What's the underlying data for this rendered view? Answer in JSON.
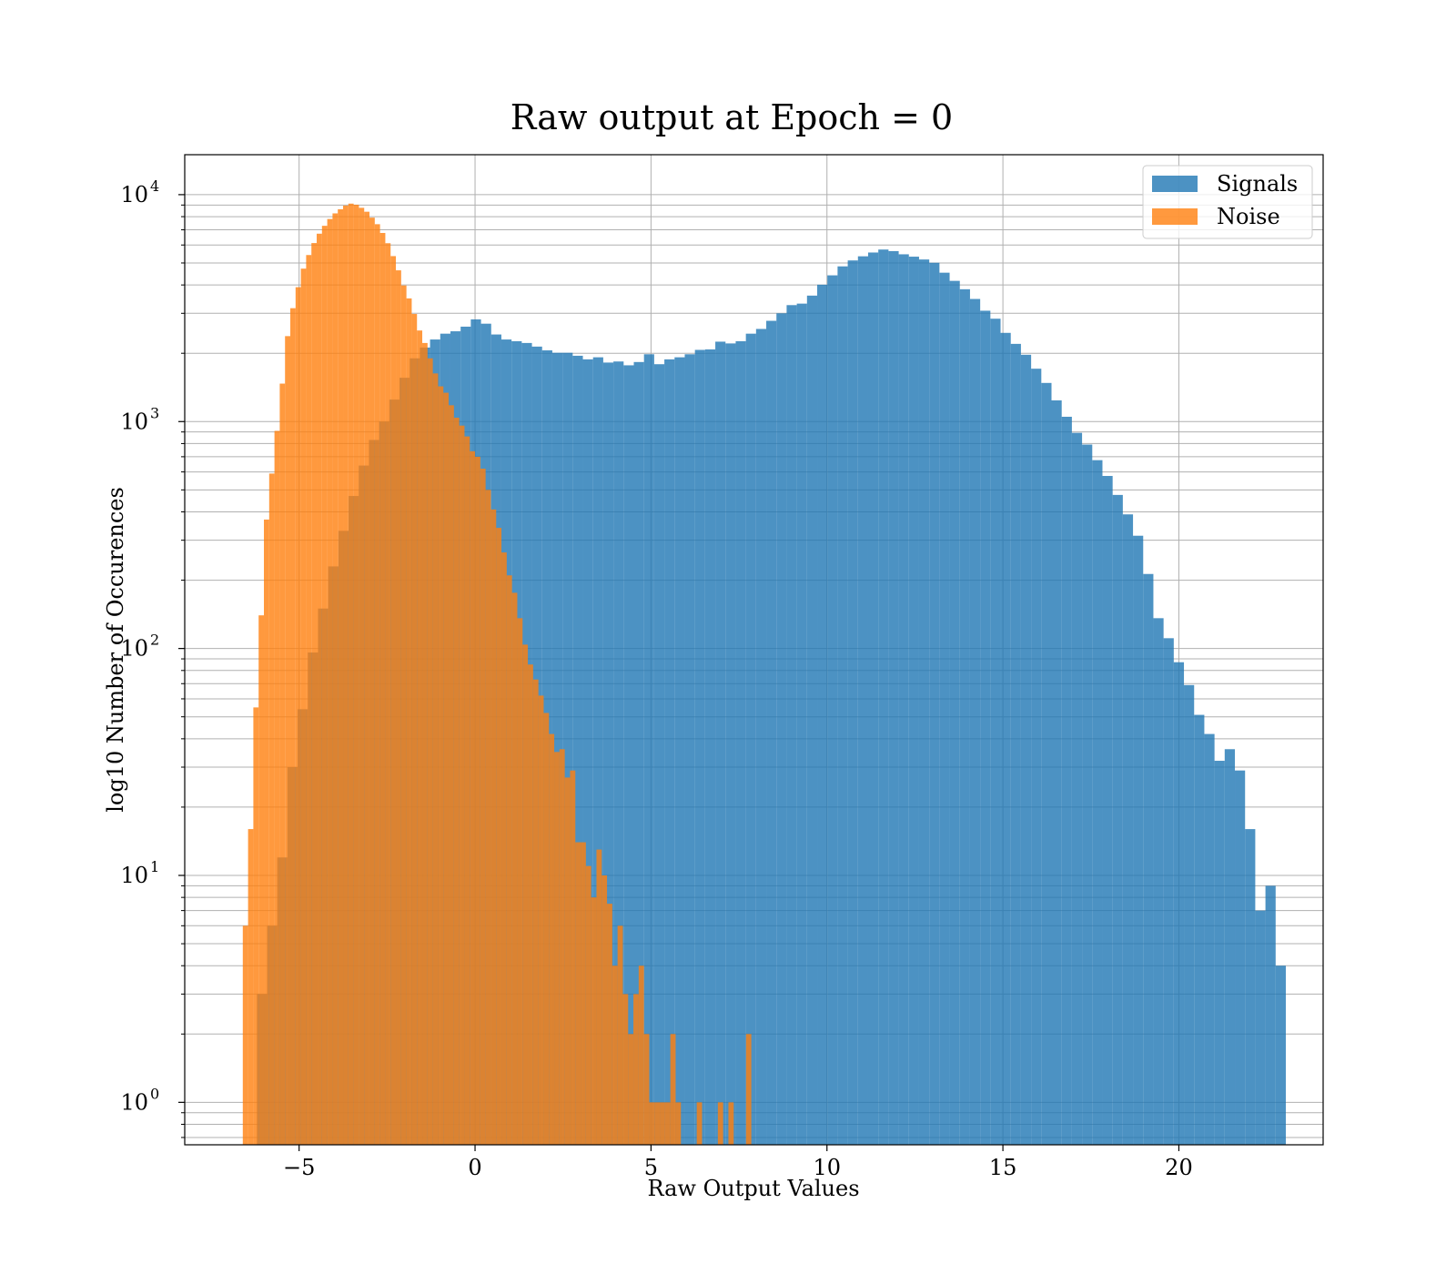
{
  "chart_data": {
    "type": "bar",
    "title": "Raw output at Epoch = 0",
    "xlabel": "Raw Output Values",
    "ylabel": "log10 Number of Occurences",
    "xlim": [
      -8.25,
      24.1
    ],
    "ylim": [
      0.65,
      15000
    ],
    "yscale": "log",
    "grid": true,
    "legend_position": "top-right",
    "x_ticks": [
      {
        "value": -5,
        "label": "−5"
      },
      {
        "value": 0,
        "label": "0"
      },
      {
        "value": 5,
        "label": "5"
      },
      {
        "value": 10,
        "label": "10"
      },
      {
        "value": 15,
        "label": "15"
      },
      {
        "value": 20,
        "label": "20"
      }
    ],
    "y_ticks": [
      {
        "value": 1,
        "base": "10",
        "exp": "0"
      },
      {
        "value": 10,
        "base": "10",
        "exp": "1"
      },
      {
        "value": 100,
        "base": "10",
        "exp": "2"
      },
      {
        "value": 1000,
        "base": "10",
        "exp": "3"
      },
      {
        "value": 10000,
        "base": "10",
        "exp": "4"
      }
    ],
    "series": [
      {
        "name": "Signals",
        "color": "#1f77b4",
        "opacity": 0.8,
        "bin_start": -6.2,
        "bin_width": 0.2895,
        "values": [
          3,
          6,
          12,
          30,
          54,
          96,
          150,
          230,
          330,
          470,
          640,
          830,
          1000,
          1250,
          1560,
          1900,
          2120,
          2300,
          2440,
          2500,
          2620,
          2820,
          2700,
          2420,
          2300,
          2260,
          2220,
          2140,
          2060,
          2010,
          2010,
          1950,
          1880,
          1920,
          1820,
          1840,
          1770,
          1830,
          1980,
          1790,
          1880,
          1920,
          1980,
          2070,
          2080,
          2250,
          2210,
          2260,
          2440,
          2560,
          2780,
          3000,
          3260,
          3310,
          3590,
          4010,
          4410,
          4830,
          5130,
          5350,
          5560,
          5730,
          5640,
          5460,
          5330,
          5180,
          5010,
          4530,
          4170,
          3830,
          3470,
          3080,
          2840,
          2460,
          2200,
          1970,
          1710,
          1480,
          1240,
          1050,
          892,
          792,
          676,
          576,
          475,
          390,
          314,
          213,
          136,
          111,
          87,
          69,
          51,
          42,
          32,
          36,
          29,
          16,
          7,
          9,
          4
        ]
      },
      {
        "name": "Noise",
        "color": "#ff7f0e",
        "opacity": 0.8,
        "bins": [
          {
            "x": -6.75,
            "v": 0.6
          },
          {
            "x": -6.6,
            "v": 6
          },
          {
            "x": -6.45,
            "v": 16
          },
          {
            "x": -6.3,
            "v": 55
          },
          {
            "x": -6.15,
            "v": 140
          },
          {
            "x": -6.0,
            "v": 370
          },
          {
            "x": -5.85,
            "v": 590
          },
          {
            "x": -5.7,
            "v": 910
          },
          {
            "x": -5.55,
            "v": 1470
          },
          {
            "x": -5.4,
            "v": 2380
          },
          {
            "x": -5.25,
            "v": 3160
          },
          {
            "x": -5.1,
            "v": 3910
          },
          {
            "x": -4.95,
            "v": 4720
          },
          {
            "x": -4.8,
            "v": 5420
          },
          {
            "x": -4.65,
            "v": 6120
          },
          {
            "x": -4.5,
            "v": 6730
          },
          {
            "x": -4.35,
            "v": 7290
          },
          {
            "x": -4.2,
            "v": 7810
          },
          {
            "x": -4.05,
            "v": 8270
          },
          {
            "x": -3.9,
            "v": 8620
          },
          {
            "x": -3.75,
            "v": 8950
          },
          {
            "x": -3.6,
            "v": 9130
          },
          {
            "x": -3.45,
            "v": 9030
          },
          {
            "x": -3.3,
            "v": 8750
          },
          {
            "x": -3.15,
            "v": 8410
          },
          {
            "x": -3.0,
            "v": 7920
          },
          {
            "x": -2.85,
            "v": 7410
          },
          {
            "x": -2.7,
            "v": 6780
          },
          {
            "x": -2.55,
            "v": 6110
          },
          {
            "x": -2.4,
            "v": 5360
          },
          {
            "x": -2.25,
            "v": 4640
          },
          {
            "x": -2.1,
            "v": 3980
          },
          {
            "x": -1.95,
            "v": 3490
          },
          {
            "x": -1.8,
            "v": 2980
          },
          {
            "x": -1.65,
            "v": 2520
          },
          {
            "x": -1.5,
            "v": 2220
          },
          {
            "x": -1.35,
            "v": 1900
          },
          {
            "x": -1.2,
            "v": 1630
          },
          {
            "x": -1.05,
            "v": 1430
          },
          {
            "x": -0.9,
            "v": 1340
          },
          {
            "x": -0.75,
            "v": 1180
          },
          {
            "x": -0.6,
            "v": 1040
          },
          {
            "x": -0.45,
            "v": 960
          },
          {
            "x": -0.3,
            "v": 860
          },
          {
            "x": -0.15,
            "v": 740
          },
          {
            "x": 0.0,
            "v": 700
          },
          {
            "x": 0.15,
            "v": 620
          },
          {
            "x": 0.3,
            "v": 500
          },
          {
            "x": 0.45,
            "v": 410
          },
          {
            "x": 0.6,
            "v": 340
          },
          {
            "x": 0.75,
            "v": 265
          },
          {
            "x": 0.9,
            "v": 210
          },
          {
            "x": 1.05,
            "v": 176
          },
          {
            "x": 1.2,
            "v": 136
          },
          {
            "x": 1.35,
            "v": 104
          },
          {
            "x": 1.5,
            "v": 85
          },
          {
            "x": 1.65,
            "v": 73
          },
          {
            "x": 1.8,
            "v": 62
          },
          {
            "x": 1.95,
            "v": 52
          },
          {
            "x": 2.1,
            "v": 42
          },
          {
            "x": 2.25,
            "v": 35
          },
          {
            "x": 2.4,
            "v": 36
          },
          {
            "x": 2.55,
            "v": 27
          },
          {
            "x": 2.7,
            "v": 29
          },
          {
            "x": 2.85,
            "v": 14
          },
          {
            "x": 3.0,
            "v": 14
          },
          {
            "x": 3.15,
            "v": 11
          },
          {
            "x": 3.3,
            "v": 8
          },
          {
            "x": 3.45,
            "v": 13
          },
          {
            "x": 3.6,
            "v": 10
          },
          {
            "x": 3.75,
            "v": 7.5
          },
          {
            "x": 3.9,
            "v": 4
          },
          {
            "x": 4.05,
            "v": 6
          },
          {
            "x": 4.2,
            "v": 3
          },
          {
            "x": 4.35,
            "v": 2
          },
          {
            "x": 4.5,
            "v": 3
          },
          {
            "x": 4.65,
            "v": 4
          },
          {
            "x": 4.8,
            "v": 2
          },
          {
            "x": 4.95,
            "v": 1
          },
          {
            "x": 5.1,
            "v": 1
          },
          {
            "x": 5.25,
            "v": 1
          },
          {
            "x": 5.4,
            "v": 1
          },
          {
            "x": 5.55,
            "v": 2
          },
          {
            "x": 5.7,
            "v": 1
          },
          {
            "x": 6.3,
            "v": 1
          },
          {
            "x": 6.9,
            "v": 1
          },
          {
            "x": 7.2,
            "v": 1
          },
          {
            "x": 7.7,
            "v": 2
          }
        ],
        "bin_width": 0.15
      }
    ]
  }
}
